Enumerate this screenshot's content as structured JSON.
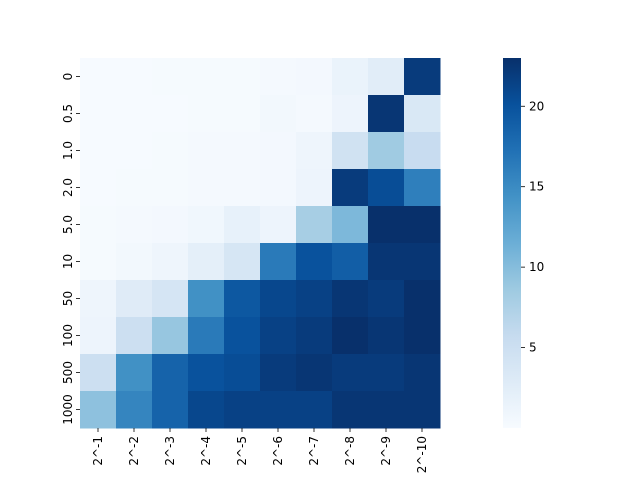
{
  "chart_data": {
    "type": "heatmap",
    "title": "",
    "xlabel": "",
    "ylabel": "",
    "x_categories": [
      "2^-1",
      "2^-2",
      "2^-3",
      "2^-4",
      "2^-5",
      "2^-6",
      "2^-7",
      "2^-8",
      "2^-9",
      "2^-10"
    ],
    "y_categories": [
      "0",
      "0.5",
      "1.0",
      "2.0",
      "5.0",
      "10",
      "50",
      "100",
      "500",
      "1000"
    ],
    "values": [
      [
        0.1,
        0.1,
        0.2,
        0.2,
        0.2,
        0.3,
        0.5,
        1.5,
        2.5,
        22.0
      ],
      [
        0.1,
        0.1,
        0.1,
        0.2,
        0.2,
        0.6,
        0.4,
        1.2,
        22.5,
        3.5
      ],
      [
        0.1,
        0.1,
        0.2,
        0.3,
        0.3,
        0.5,
        1.0,
        4.5,
        8.5,
        5.5
      ],
      [
        0.1,
        0.2,
        0.2,
        0.3,
        0.4,
        0.5,
        1.2,
        22.0,
        20.5,
        16.0
      ],
      [
        0.2,
        0.4,
        0.5,
        0.8,
        1.8,
        1.2,
        8.0,
        10.5,
        23.0,
        23.0
      ],
      [
        0.2,
        0.6,
        1.0,
        2.2,
        3.8,
        16.5,
        20.0,
        19.0,
        22.5,
        22.5
      ],
      [
        1.0,
        2.8,
        4.0,
        14.5,
        19.5,
        21.0,
        21.5,
        22.5,
        22.0,
        23.0
      ],
      [
        1.2,
        5.0,
        9.0,
        16.5,
        20.0,
        21.5,
        22.0,
        23.0,
        22.5,
        23.0
      ],
      [
        5.0,
        14.5,
        18.5,
        20.0,
        20.5,
        22.0,
        22.5,
        22.0,
        22.0,
        22.5
      ],
      [
        9.5,
        15.5,
        18.5,
        21.0,
        21.5,
        21.5,
        21.5,
        22.5,
        22.5,
        22.5
      ]
    ],
    "vmin": 0,
    "vmax": 23,
    "colormap": "Blues",
    "colormap_stops": [
      "#f7fbff",
      "#deebf7",
      "#c6dbef",
      "#9ecae1",
      "#6baed6",
      "#4292c6",
      "#2171b5",
      "#08519c",
      "#08306b"
    ],
    "colorbar_ticks": [
      5,
      10,
      15,
      20
    ],
    "grid": false,
    "legend": "colorbar-right"
  }
}
